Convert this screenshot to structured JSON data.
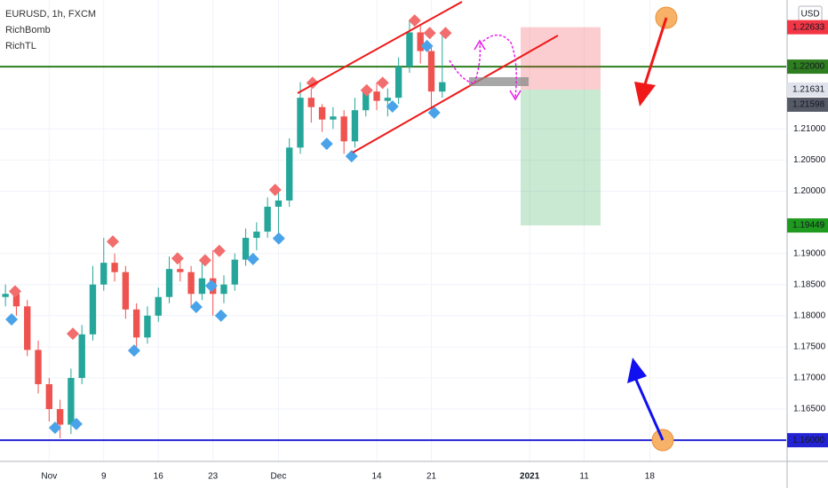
{
  "chart_data": {
    "type": "candlestick",
    "title": "EURUSD, 1h, FXCM",
    "indicators": [
      "RichBomb",
      "RichTL"
    ],
    "currency": "USD",
    "up_color": "#26a69a",
    "down_color": "#ef5350",
    "grid": true,
    "categories": [
      null,
      null,
      null,
      null,
      "Nov",
      null,
      null,
      null,
      null,
      "9",
      null,
      null,
      null,
      null,
      "16",
      null,
      null,
      null,
      null,
      "23",
      null,
      null,
      null,
      null,
      null,
      "Dec",
      null,
      null,
      null,
      null,
      null,
      null,
      null,
      null,
      "14",
      null,
      null,
      null,
      null,
      "21",
      null,
      null,
      null,
      null,
      null,
      null,
      null,
      null,
      "2021",
      null,
      null,
      null,
      null,
      "11",
      null,
      null,
      null,
      null,
      null,
      "18",
      null,
      null,
      null,
      null,
      null,
      null,
      null,
      null,
      null,
      null,
      null,
      null
    ],
    "open": [
      1.183,
      1.1835,
      1.1815,
      1.1745,
      1.169,
      1.165,
      1.1625,
      1.17,
      1.177,
      1.185,
      1.1885,
      1.187,
      1.181,
      1.1765,
      1.18,
      1.183,
      1.1875,
      1.187,
      1.1835,
      1.186,
      1.1835,
      1.185,
      1.189,
      1.1925,
      1.1935,
      1.1975,
      1.1985,
      1.207,
      1.215,
      1.2135,
      1.2115,
      1.212,
      1.208,
      1.213,
      1.216,
      1.2145,
      1.215,
      1.22,
      1.2255,
      1.2225,
      1.216,
      null,
      null,
      null,
      null,
      null,
      null,
      null,
      null,
      null,
      null,
      null,
      null,
      null,
      null,
      null,
      null,
      null,
      null,
      null,
      null,
      null,
      null,
      null,
      null,
      null,
      null,
      null,
      null,
      null,
      null,
      null
    ],
    "high": [
      1.185,
      1.1845,
      1.1825,
      1.176,
      1.17,
      1.1665,
      1.1715,
      1.1785,
      1.188,
      1.1925,
      1.19,
      1.188,
      1.182,
      1.1815,
      1.1845,
      1.1895,
      1.189,
      1.188,
      1.1885,
      1.1905,
      1.1865,
      1.19,
      1.194,
      1.195,
      1.199,
      1.2005,
      1.2085,
      1.2175,
      1.2165,
      1.214,
      1.2135,
      1.213,
      1.215,
      1.217,
      1.2175,
      1.2165,
      1.2215,
      1.2275,
      1.2265,
      1.2235,
      1.2255,
      null,
      null,
      null,
      null,
      null,
      null,
      null,
      null,
      null,
      null,
      null,
      null,
      null,
      null,
      null,
      null,
      null,
      null,
      null,
      null,
      null,
      null,
      null,
      null,
      null,
      null,
      null,
      null,
      null,
      null,
      null
    ],
    "low": [
      1.1815,
      1.18,
      1.1735,
      1.1675,
      1.163,
      1.1603,
      1.161,
      1.169,
      1.176,
      1.184,
      1.1855,
      1.1795,
      1.175,
      1.1755,
      1.179,
      1.182,
      1.1855,
      1.1815,
      1.1825,
      1.18,
      1.182,
      1.184,
      1.188,
      1.1905,
      1.1925,
      1.193,
      1.1975,
      1.206,
      1.211,
      1.2095,
      1.21,
      1.206,
      1.207,
      1.212,
      1.213,
      1.212,
      1.214,
      1.219,
      1.2205,
      1.213,
      1.215,
      null,
      null,
      null,
      null,
      null,
      null,
      null,
      null,
      null,
      null,
      null,
      null,
      null,
      null,
      null,
      null,
      null,
      null,
      null,
      null,
      null,
      null,
      null,
      null,
      null,
      null,
      null,
      null,
      null,
      null,
      null
    ],
    "close": [
      1.1835,
      1.1815,
      1.1745,
      1.169,
      1.165,
      1.1625,
      1.17,
      1.177,
      1.185,
      1.1885,
      1.187,
      1.181,
      1.1765,
      1.18,
      1.183,
      1.1875,
      1.187,
      1.1835,
      1.186,
      1.1835,
      1.185,
      1.189,
      1.1925,
      1.1935,
      1.1975,
      1.1985,
      1.207,
      1.215,
      1.2135,
      1.2115,
      1.212,
      1.208,
      1.213,
      1.216,
      1.2145,
      1.215,
      1.22,
      1.2255,
      1.2225,
      1.216,
      1.2175,
      null,
      null,
      null,
      null,
      null,
      null,
      null,
      null,
      null,
      null,
      null,
      null,
      null,
      null,
      null,
      null,
      null,
      null,
      null,
      null,
      null,
      null,
      null,
      null,
      null,
      null,
      null,
      null,
      null,
      null,
      null
    ],
    "signals": [
      {
        "color": "#f26d6d",
        "x": [
          0.88,
          6.17,
          9.83,
          15.76,
          18.28,
          19.58,
          24.7,
          28.12,
          33.08,
          34.54,
          37.47,
          38.85,
          40.3
        ],
        "values": [
          1.1839,
          1.1771,
          1.1919,
          1.1892,
          1.1889,
          1.1904,
          1.2002,
          1.2174,
          1.2162,
          1.2174,
          1.2274,
          1.2254,
          1.2254
        ]
      },
      {
        "color": "#4aa3e8",
        "x": [
          0.56,
          4.54,
          6.49,
          11.78,
          17.47,
          18.85,
          19.74,
          22.67,
          25.03,
          29.42,
          31.7,
          35.44,
          38.6,
          39.26
        ],
        "values": [
          1.1794,
          1.162,
          1.1626,
          1.1744,
          1.1814,
          1.1848,
          1.18,
          1.1891,
          1.1924,
          1.2076,
          1.2056,
          1.2136,
          1.2233,
          1.2126
        ]
      }
    ],
    "ylim": [
      1.1566,
      1.2307
    ],
    "yticks": [
      {
        "value": 1.165,
        "label": "1.16500"
      },
      {
        "value": 1.17,
        "label": "1.17000"
      },
      {
        "value": 1.175,
        "label": "1.17500"
      },
      {
        "value": 1.18,
        "label": "1.18000"
      },
      {
        "value": 1.185,
        "label": "1.18500"
      },
      {
        "value": 1.19,
        "label": "1.19000"
      },
      {
        "value": 1.2,
        "label": "1.20000"
      },
      {
        "value": 1.205,
        "label": "1.20500"
      },
      {
        "value": 1.21,
        "label": "1.21000"
      }
    ],
    "price_labels": [
      {
        "value": 1.22633,
        "label": "1.22633",
        "color": "#f23645",
        "text_color": "#ffffff",
        "line": false
      },
      {
        "value": 1.22,
        "label": "1.22000",
        "color": "#2e7d1f",
        "text_color": "#ffffff",
        "line": true
      },
      {
        "value": 1.21631,
        "label": "1.21631",
        "color": "#e0e3eb",
        "text_color": "#131722",
        "line": false
      },
      {
        "value": 1.21598,
        "label": "1.21598",
        "color": "#555a66",
        "text_color": "#ffffff",
        "line": false
      },
      {
        "value": 1.19449,
        "label": "1.19449",
        "color": "#1e9b1e",
        "text_color": "#ffffff",
        "line": false
      },
      {
        "value": 1.16,
        "label": "1.16000",
        "color": "#2323d4",
        "text_color": "#ffffff",
        "line": true
      }
    ]
  }
}
